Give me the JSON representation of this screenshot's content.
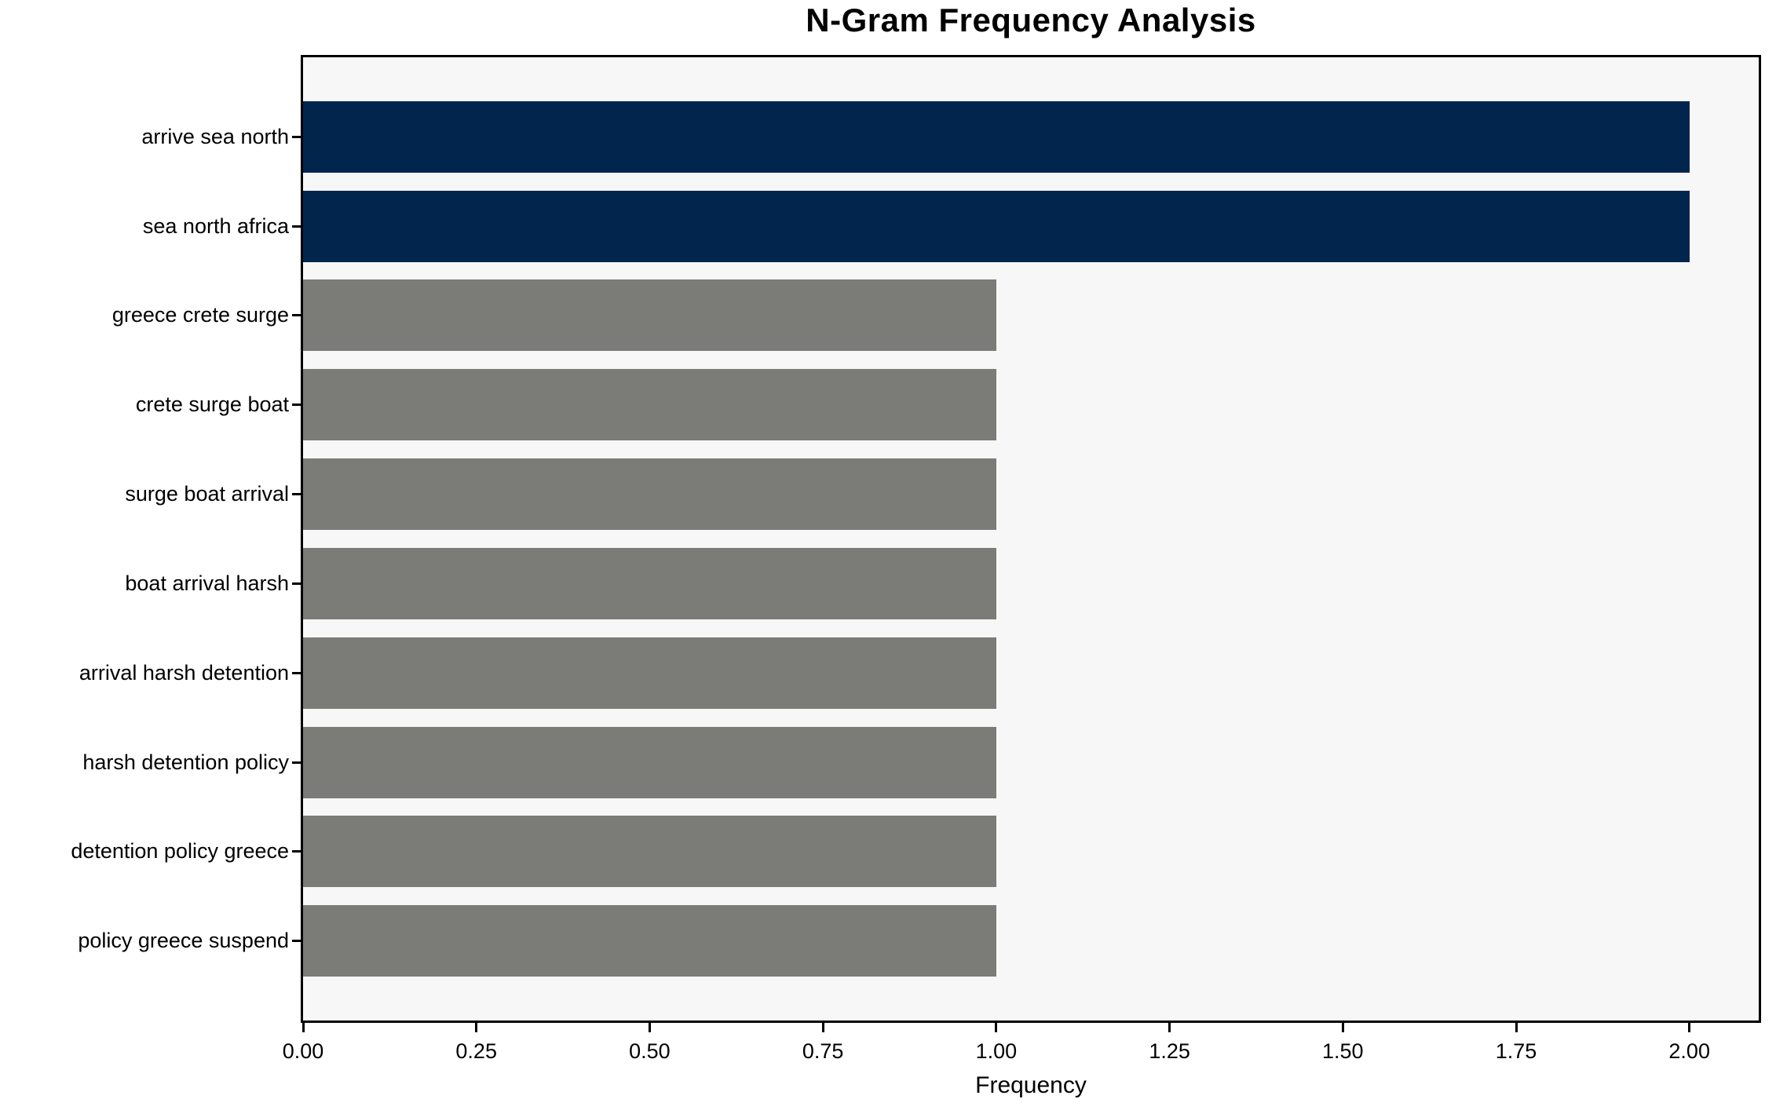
{
  "chart_data": {
    "type": "bar",
    "orientation": "horizontal",
    "title": "N-Gram Frequency Analysis",
    "xlabel": "Frequency",
    "ylabel": "",
    "categories": [
      "arrive sea north",
      "sea north africa",
      "greece crete surge",
      "crete surge boat",
      "surge boat arrival",
      "boat arrival harsh",
      "arrival harsh detention",
      "harsh detention policy",
      "detention policy greece",
      "policy greece suspend"
    ],
    "values": [
      2,
      2,
      1,
      1,
      1,
      1,
      1,
      1,
      1,
      1
    ],
    "bar_colors": [
      "#02254d",
      "#02254d",
      "#7b7b78",
      "#7b7b78",
      "#7b7b78",
      "#7b7b78",
      "#7b7b78",
      "#7b7b78",
      "#7b7b78",
      "#7b7b78"
    ],
    "xlim": [
      0,
      2.1
    ],
    "x_tick_values": [
      0,
      0.25,
      0.5,
      0.75,
      1.0,
      1.25,
      1.5,
      1.75,
      2.0
    ],
    "x_tick_labels": [
      "0.00",
      "0.25",
      "0.50",
      "0.75",
      "1.00",
      "1.25",
      "1.50",
      "1.75",
      "2.00"
    ],
    "grid": false,
    "legend": null,
    "colors": {
      "highlight_bar": "#02254d",
      "default_bar": "#7b7b78",
      "plot_background": "#f7f7f7",
      "figure_background": "#ffffff",
      "spine": "#000000",
      "text": "#000000"
    }
  }
}
